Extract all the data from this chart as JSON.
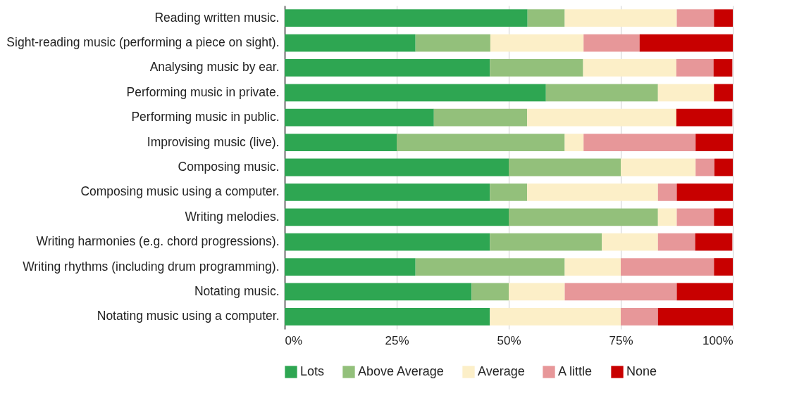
{
  "chart_data": {
    "type": "bar",
    "orientation": "horizontal",
    "stacked": true,
    "categories": [
      "Reading written music.",
      "Sight-reading music (performing a piece on sight).",
      "Analysing music by ear.",
      "Performing music in private.",
      "Performing music in public.",
      "Improvising music (live).",
      "Composing music.",
      "Composing music using a computer.",
      "Writing melodies.",
      "Writing harmonies (e.g. chord progressions).",
      "Writing rhythms (including drum programming).",
      "Notating music.",
      "Notating music using a computer."
    ],
    "series": [
      {
        "name": "Lots",
        "color": "#2ea652",
        "values": [
          54.2,
          29.2,
          45.8,
          58.3,
          33.3,
          25,
          50,
          45.8,
          50,
          45.8,
          29.2,
          41.7,
          45.8
        ]
      },
      {
        "name": "Above Average",
        "color": "#93c07b",
        "values": [
          8.3,
          16.7,
          20.8,
          25,
          20.8,
          37.5,
          25,
          8.3,
          33.3,
          25,
          33.3,
          8.3,
          0
        ]
      },
      {
        "name": "Average",
        "color": "#fcefc8",
        "values": [
          25,
          20.8,
          20.8,
          12.5,
          33.3,
          4.2,
          16.7,
          29.2,
          4.2,
          12.5,
          12.5,
          12.5,
          29.2
        ]
      },
      {
        "name": "A little",
        "color": "#e79799",
        "values": [
          8.3,
          12.5,
          8.3,
          0,
          0,
          25,
          4.2,
          4.2,
          8.3,
          8.3,
          20.8,
          25,
          8.3
        ]
      },
      {
        "name": "None",
        "color": "#c80000",
        "values": [
          4.2,
          20.8,
          4.2,
          4.2,
          12.5,
          8.3,
          4.1,
          12.5,
          4.2,
          8.3,
          4.2,
          12.5,
          16.7
        ]
      }
    ],
    "xlim": [
      0,
      100
    ],
    "xticks": [
      {
        "value": 0,
        "label": "0%"
      },
      {
        "value": 25,
        "label": "25%"
      },
      {
        "value": 50,
        "label": "50%"
      },
      {
        "value": 75,
        "label": "75%"
      },
      {
        "value": 100,
        "label": "100%"
      }
    ],
    "grid": "x",
    "legend": "bottom"
  }
}
